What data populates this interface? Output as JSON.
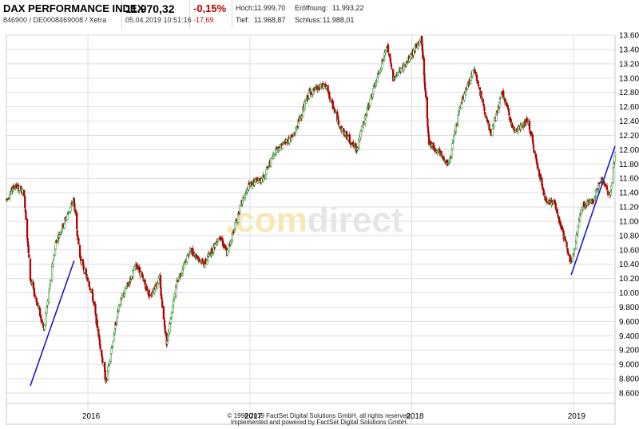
{
  "header": {
    "title": "DAX PERFORMANCE INDEX",
    "identifiers": "846900 / DE0008469008 / Xetra",
    "price": "11.970,32",
    "timestamp": "05.04.2019 10:51:16",
    "change_pct": "-0,15%",
    "change_abs": "-17,69",
    "high_label": "Hoch:",
    "high_value": "11.999,70",
    "open_label": "Eröffnung:",
    "open_value": "11.993,22",
    "low_label": "Tief:",
    "low_value": "11.968,87",
    "close_label": "Schluss:",
    "close_value": "11.988,01"
  },
  "watermark": {
    "part1": ".com",
    "part2": "direct"
  },
  "footer": {
    "line1": "© 1998-2019 FactSet Digital Solutions GmbH, all rights reserved.",
    "line2": "Implemented and powered by FactSet Digital Solutions GmbH."
  },
  "colors": {
    "up": "#1a8a1a",
    "down": "#b00000",
    "trendline": "#1a1acc",
    "grid": "#dddddd"
  },
  "chart_data": {
    "type": "candlestick",
    "y_ticks": [
      "8.600",
      "8.800",
      "9.000",
      "9.200",
      "9.400",
      "9.600",
      "9.800",
      "10.000",
      "10.200",
      "10.400",
      "10.600",
      "10.800",
      "11.000",
      "11.200",
      "11.400",
      "11.600",
      "11.800",
      "12.000",
      "12.200",
      "12.400",
      "12.600",
      "12.800",
      "13.000",
      "13.200",
      "13.400",
      "13.600"
    ],
    "ylim": [
      8600,
      13600
    ],
    "x_ticks": [
      "2016",
      "2017",
      "2018",
      "2019"
    ],
    "x_tick_dates": [
      "2016-01-01",
      "2017-01-01",
      "2018-01-01",
      "2019-01-01"
    ],
    "xlim": [
      "2015-07-01",
      "2019-04-05"
    ],
    "grid": true,
    "price_anchors": [
      {
        "date": "2015-07-01",
        "value": 11300
      },
      {
        "date": "2015-07-20",
        "value": 11500
      },
      {
        "date": "2015-08-10",
        "value": 11400
      },
      {
        "date": "2015-08-24",
        "value": 10200
      },
      {
        "date": "2015-09-24",
        "value": 9500
      },
      {
        "date": "2015-10-20",
        "value": 10700
      },
      {
        "date": "2015-11-30",
        "value": 11300
      },
      {
        "date": "2015-12-14",
        "value": 10500
      },
      {
        "date": "2016-01-10",
        "value": 10000
      },
      {
        "date": "2016-02-11",
        "value": 8750
      },
      {
        "date": "2016-03-10",
        "value": 9800
      },
      {
        "date": "2016-04-20",
        "value": 10400
      },
      {
        "date": "2016-05-20",
        "value": 9950
      },
      {
        "date": "2016-06-10",
        "value": 10200
      },
      {
        "date": "2016-06-27",
        "value": 9300
      },
      {
        "date": "2016-07-20",
        "value": 10150
      },
      {
        "date": "2016-08-20",
        "value": 10600
      },
      {
        "date": "2016-09-20",
        "value": 10400
      },
      {
        "date": "2016-10-25",
        "value": 10800
      },
      {
        "date": "2016-11-10",
        "value": 10550
      },
      {
        "date": "2016-12-10",
        "value": 11200
      },
      {
        "date": "2016-12-30",
        "value": 11500
      },
      {
        "date": "2017-01-30",
        "value": 11600
      },
      {
        "date": "2017-03-01",
        "value": 12000
      },
      {
        "date": "2017-04-10",
        "value": 12200
      },
      {
        "date": "2017-05-15",
        "value": 12800
      },
      {
        "date": "2017-06-20",
        "value": 12900
      },
      {
        "date": "2017-07-25",
        "value": 12300
      },
      {
        "date": "2017-08-29",
        "value": 12000
      },
      {
        "date": "2017-09-25",
        "value": 12600
      },
      {
        "date": "2017-11-07",
        "value": 13450
      },
      {
        "date": "2017-11-20",
        "value": 13000
      },
      {
        "date": "2017-12-20",
        "value": 13200
      },
      {
        "date": "2018-01-23",
        "value": 13550
      },
      {
        "date": "2018-02-09",
        "value": 12100
      },
      {
        "date": "2018-03-26",
        "value": 11800
      },
      {
        "date": "2018-04-20",
        "value": 12600
      },
      {
        "date": "2018-05-22",
        "value": 13150
      },
      {
        "date": "2018-06-28",
        "value": 12200
      },
      {
        "date": "2018-07-25",
        "value": 12800
      },
      {
        "date": "2018-08-20",
        "value": 12250
      },
      {
        "date": "2018-09-20",
        "value": 12400
      },
      {
        "date": "2018-10-29",
        "value": 11300
      },
      {
        "date": "2018-11-20",
        "value": 11250
      },
      {
        "date": "2018-12-27",
        "value": 10400
      },
      {
        "date": "2019-01-20",
        "value": 11200
      },
      {
        "date": "2019-02-15",
        "value": 11300
      },
      {
        "date": "2019-03-05",
        "value": 11600
      },
      {
        "date": "2019-03-25",
        "value": 11350
      },
      {
        "date": "2019-04-05",
        "value": 11970
      }
    ],
    "trendlines": [
      [
        {
          "date": "2015-08-24",
          "value": 8700
        },
        {
          "date": "2015-12-01",
          "value": 10450
        }
      ],
      [
        {
          "date": "2018-12-27",
          "value": 10250
        },
        {
          "date": "2019-04-05",
          "value": 12050
        }
      ]
    ]
  }
}
